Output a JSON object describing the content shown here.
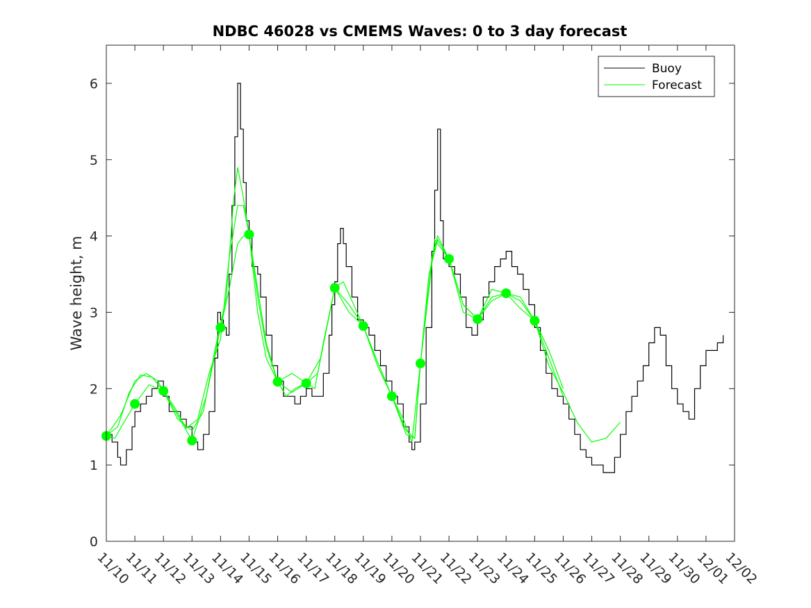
{
  "chart_data": {
    "type": "line",
    "title": "NDBC 46028 vs CMEMS Waves: 0 to 3 day forecast",
    "xlabel": "",
    "ylabel": "Wave height, m",
    "xticks": [
      "11/10",
      "11/11",
      "11/12",
      "11/13",
      "11/14",
      "11/15",
      "11/16",
      "11/17",
      "11/18",
      "11/19",
      "11/20",
      "11/21",
      "11/22",
      "11/23",
      "11/24",
      "11/25",
      "11/26",
      "11/27",
      "11/28",
      "11/29",
      "11/30",
      "12/01",
      "12/02"
    ],
    "xlim": [
      0,
      22
    ],
    "ylim": [
      0,
      6.5
    ],
    "yticks": [
      0,
      1,
      2,
      3,
      4,
      5,
      6
    ],
    "grid": false,
    "legend": {
      "position": "top-right",
      "entries": [
        "Buoy",
        "Forecast"
      ]
    },
    "colors": {
      "buoy": "#000000",
      "forecast": "#00ff00",
      "axes": "#262626"
    },
    "series": [
      {
        "name": "Buoy",
        "x_unit": "days since 11/10",
        "points": [
          [
            0.0,
            1.4
          ],
          [
            0.2,
            1.3
          ],
          [
            0.4,
            1.1
          ],
          [
            0.5,
            1.0
          ],
          [
            0.7,
            1.2
          ],
          [
            0.9,
            1.5
          ],
          [
            1.0,
            1.7
          ],
          [
            1.2,
            1.8
          ],
          [
            1.4,
            1.9
          ],
          [
            1.6,
            2.0
          ],
          [
            1.8,
            2.1
          ],
          [
            2.0,
            1.9
          ],
          [
            2.2,
            1.7
          ],
          [
            2.4,
            1.7
          ],
          [
            2.6,
            1.6
          ],
          [
            2.8,
            1.5
          ],
          [
            3.0,
            1.3
          ],
          [
            3.2,
            1.2
          ],
          [
            3.4,
            1.4
          ],
          [
            3.6,
            1.7
          ],
          [
            3.8,
            2.4
          ],
          [
            3.9,
            3.0
          ],
          [
            4.0,
            2.9
          ],
          [
            4.1,
            2.8
          ],
          [
            4.2,
            2.7
          ],
          [
            4.3,
            3.5
          ],
          [
            4.4,
            4.4
          ],
          [
            4.5,
            5.3
          ],
          [
            4.6,
            6.0
          ],
          [
            4.7,
            5.4
          ],
          [
            4.8,
            4.7
          ],
          [
            4.9,
            4.2
          ],
          [
            5.0,
            4.0
          ],
          [
            5.1,
            3.6
          ],
          [
            5.2,
            3.6
          ],
          [
            5.3,
            3.5
          ],
          [
            5.4,
            3.2
          ],
          [
            5.6,
            2.7
          ],
          [
            5.8,
            2.3
          ],
          [
            6.0,
            2.1
          ],
          [
            6.2,
            1.9
          ],
          [
            6.4,
            1.9
          ],
          [
            6.6,
            1.8
          ],
          [
            6.8,
            1.9
          ],
          [
            7.0,
            2.0
          ],
          [
            7.2,
            1.9
          ],
          [
            7.4,
            1.9
          ],
          [
            7.6,
            2.2
          ],
          [
            7.8,
            2.7
          ],
          [
            7.9,
            3.1
          ],
          [
            8.0,
            3.4
          ],
          [
            8.1,
            3.9
          ],
          [
            8.2,
            4.1
          ],
          [
            8.3,
            3.9
          ],
          [
            8.4,
            3.6
          ],
          [
            8.6,
            3.2
          ],
          [
            8.8,
            2.9
          ],
          [
            9.0,
            2.8
          ],
          [
            9.2,
            2.7
          ],
          [
            9.4,
            2.5
          ],
          [
            9.6,
            2.3
          ],
          [
            9.8,
            2.1
          ],
          [
            10.0,
            1.9
          ],
          [
            10.2,
            1.8
          ],
          [
            10.4,
            1.5
          ],
          [
            10.6,
            1.3
          ],
          [
            10.7,
            1.2
          ],
          [
            10.8,
            1.3
          ],
          [
            11.0,
            1.8
          ],
          [
            11.2,
            2.8
          ],
          [
            11.4,
            3.8
          ],
          [
            11.5,
            4.6
          ],
          [
            11.6,
            5.4
          ],
          [
            11.7,
            4.2
          ],
          [
            11.8,
            3.7
          ],
          [
            12.0,
            3.6
          ],
          [
            12.2,
            3.5
          ],
          [
            12.4,
            3.2
          ],
          [
            12.6,
            2.8
          ],
          [
            12.8,
            2.7
          ],
          [
            13.0,
            2.9
          ],
          [
            13.2,
            3.2
          ],
          [
            13.4,
            3.4
          ],
          [
            13.6,
            3.6
          ],
          [
            13.8,
            3.7
          ],
          [
            14.0,
            3.8
          ],
          [
            14.2,
            3.6
          ],
          [
            14.4,
            3.5
          ],
          [
            14.6,
            3.3
          ],
          [
            14.8,
            3.1
          ],
          [
            15.0,
            2.8
          ],
          [
            15.2,
            2.5
          ],
          [
            15.4,
            2.2
          ],
          [
            15.6,
            2.0
          ],
          [
            15.8,
            1.9
          ],
          [
            16.0,
            1.8
          ],
          [
            16.2,
            1.6
          ],
          [
            16.4,
            1.4
          ],
          [
            16.6,
            1.2
          ],
          [
            16.8,
            1.1
          ],
          [
            17.0,
            1.0
          ],
          [
            17.2,
            1.0
          ],
          [
            17.4,
            0.9
          ],
          [
            17.6,
            0.9
          ],
          [
            17.8,
            1.1
          ],
          [
            18.0,
            1.4
          ],
          [
            18.2,
            1.7
          ],
          [
            18.4,
            1.9
          ],
          [
            18.6,
            2.1
          ],
          [
            18.8,
            2.3
          ],
          [
            19.0,
            2.6
          ],
          [
            19.2,
            2.8
          ],
          [
            19.4,
            2.7
          ],
          [
            19.6,
            2.3
          ],
          [
            19.8,
            2.0
          ],
          [
            20.0,
            1.8
          ],
          [
            20.2,
            1.7
          ],
          [
            20.4,
            1.6
          ],
          [
            20.6,
            2.0
          ],
          [
            20.8,
            2.3
          ],
          [
            21.0,
            2.5
          ],
          [
            21.2,
            2.5
          ],
          [
            21.4,
            2.6
          ],
          [
            21.6,
            2.7
          ]
        ]
      },
      {
        "name": "Forecast",
        "x_unit": "days since 11/10",
        "points": [
          [
            0.0,
            1.38
          ],
          [
            0.3,
            1.35
          ],
          [
            0.6,
            1.55
          ],
          [
            1.0,
            1.8
          ],
          [
            1.5,
            2.05
          ],
          [
            2.0,
            1.97
          ],
          [
            2.5,
            1.65
          ],
          [
            3.0,
            1.32
          ],
          [
            3.5,
            1.9
          ],
          [
            4.0,
            2.8
          ],
          [
            4.3,
            3.3
          ],
          [
            4.6,
            3.9
          ],
          [
            4.8,
            4.0
          ],
          [
            5.0,
            4.02
          ],
          [
            5.3,
            3.3
          ],
          [
            5.6,
            2.6
          ],
          [
            6.0,
            2.09
          ],
          [
            6.5,
            1.95
          ],
          [
            7.0,
            2.07
          ],
          [
            7.5,
            2.4
          ],
          [
            8.0,
            3.32
          ],
          [
            8.5,
            3.0
          ],
          [
            9.0,
            2.82
          ],
          [
            9.5,
            2.3
          ],
          [
            10.0,
            1.9
          ],
          [
            10.5,
            1.4
          ],
          [
            10.8,
            1.35
          ],
          [
            11.0,
            2.33
          ],
          [
            11.5,
            3.95
          ],
          [
            12.0,
            3.7
          ],
          [
            12.5,
            3.0
          ],
          [
            13.0,
            2.91
          ],
          [
            13.5,
            3.15
          ],
          [
            14.0,
            3.25
          ],
          [
            14.5,
            3.15
          ],
          [
            15.0,
            2.89
          ],
          [
            15.5,
            2.3
          ],
          [
            16.0,
            1.95
          ],
          [
            16.5,
            1.55
          ],
          [
            17.0,
            1.3
          ],
          [
            17.5,
            1.35
          ],
          [
            18.0,
            1.56
          ]
        ]
      },
      {
        "name": "",
        "x_unit": "days since 11/10",
        "points": [
          [
            0.0,
            1.38
          ],
          [
            0.4,
            1.5
          ],
          [
            0.8,
            1.95
          ],
          [
            1.2,
            2.18
          ],
          [
            1.6,
            2.15
          ],
          [
            2.0,
            1.97
          ],
          [
            2.4,
            1.75
          ],
          [
            2.8,
            1.48
          ],
          [
            3.2,
            1.6
          ],
          [
            3.6,
            2.2
          ],
          [
            4.0,
            2.65
          ],
          [
            4.3,
            3.7
          ],
          [
            4.6,
            4.4
          ],
          [
            4.8,
            4.4
          ],
          [
            5.0,
            4.02
          ],
          [
            5.3,
            3.2
          ],
          [
            5.6,
            2.55
          ],
          [
            6.0,
            2.09
          ],
          [
            6.3,
            1.9
          ],
          [
            6.6,
            2.0
          ],
          [
            7.0,
            2.07
          ],
          [
            7.3,
            2.0
          ],
          [
            7.6,
            2.6
          ],
          [
            8.0,
            3.32
          ],
          [
            8.5,
            3.1
          ],
          [
            9.0,
            2.82
          ],
          [
            9.5,
            2.35
          ],
          [
            10.0,
            1.9
          ],
          [
            10.5,
            1.45
          ],
          [
            10.8,
            1.35
          ],
          [
            11.0,
            2.33
          ],
          [
            11.3,
            3.5
          ],
          [
            11.6,
            3.95
          ],
          [
            12.0,
            3.7
          ],
          [
            12.5,
            3.1
          ],
          [
            13.0,
            2.91
          ],
          [
            13.5,
            3.2
          ],
          [
            14.0,
            3.25
          ],
          [
            14.5,
            3.05
          ],
          [
            15.0,
            2.89
          ],
          [
            15.5,
            2.4
          ],
          [
            16.0,
            1.9
          ]
        ]
      },
      {
        "name": "",
        "x_unit": "days since 11/10",
        "points": [
          [
            0.0,
            1.38
          ],
          [
            0.5,
            1.65
          ],
          [
            1.0,
            2.1
          ],
          [
            1.4,
            2.2
          ],
          [
            1.8,
            2.1
          ],
          [
            2.0,
            1.97
          ],
          [
            2.5,
            1.6
          ],
          [
            3.0,
            1.45
          ],
          [
            3.4,
            1.7
          ],
          [
            3.8,
            2.5
          ],
          [
            4.2,
            3.2
          ],
          [
            4.45,
            4.45
          ],
          [
            4.6,
            4.9
          ],
          [
            4.8,
            4.5
          ],
          [
            5.0,
            4.02
          ],
          [
            5.3,
            3.0
          ],
          [
            5.6,
            2.4
          ],
          [
            6.0,
            2.09
          ],
          [
            6.5,
            2.2
          ],
          [
            7.0,
            2.07
          ],
          [
            7.4,
            2.2
          ],
          [
            8.0,
            3.32
          ],
          [
            8.3,
            3.4
          ],
          [
            9.0,
            2.82
          ],
          [
            9.5,
            2.3
          ],
          [
            10.0,
            1.9
          ],
          [
            10.4,
            1.6
          ],
          [
            10.7,
            1.3
          ],
          [
            11.0,
            2.33
          ],
          [
            11.4,
            3.7
          ],
          [
            11.6,
            4.0
          ],
          [
            12.0,
            3.7
          ],
          [
            12.5,
            3.1
          ],
          [
            13.0,
            2.91
          ],
          [
            13.5,
            3.3
          ],
          [
            14.0,
            3.25
          ],
          [
            14.5,
            3.2
          ],
          [
            15.0,
            2.89
          ],
          [
            15.5,
            2.5
          ],
          [
            16.0,
            2.0
          ]
        ]
      }
    ],
    "forecast_markers": [
      [
        0,
        1.38
      ],
      [
        1,
        1.8
      ],
      [
        2,
        1.97
      ],
      [
        3,
        1.32
      ],
      [
        4,
        2.8
      ],
      [
        5,
        4.02
      ],
      [
        6,
        2.09
      ],
      [
        7,
        2.07
      ],
      [
        8,
        3.32
      ],
      [
        9,
        2.82
      ],
      [
        10,
        1.9
      ],
      [
        11,
        2.33
      ],
      [
        12,
        3.7
      ],
      [
        13,
        2.91
      ],
      [
        14,
        3.25
      ],
      [
        15,
        2.89
      ]
    ]
  }
}
